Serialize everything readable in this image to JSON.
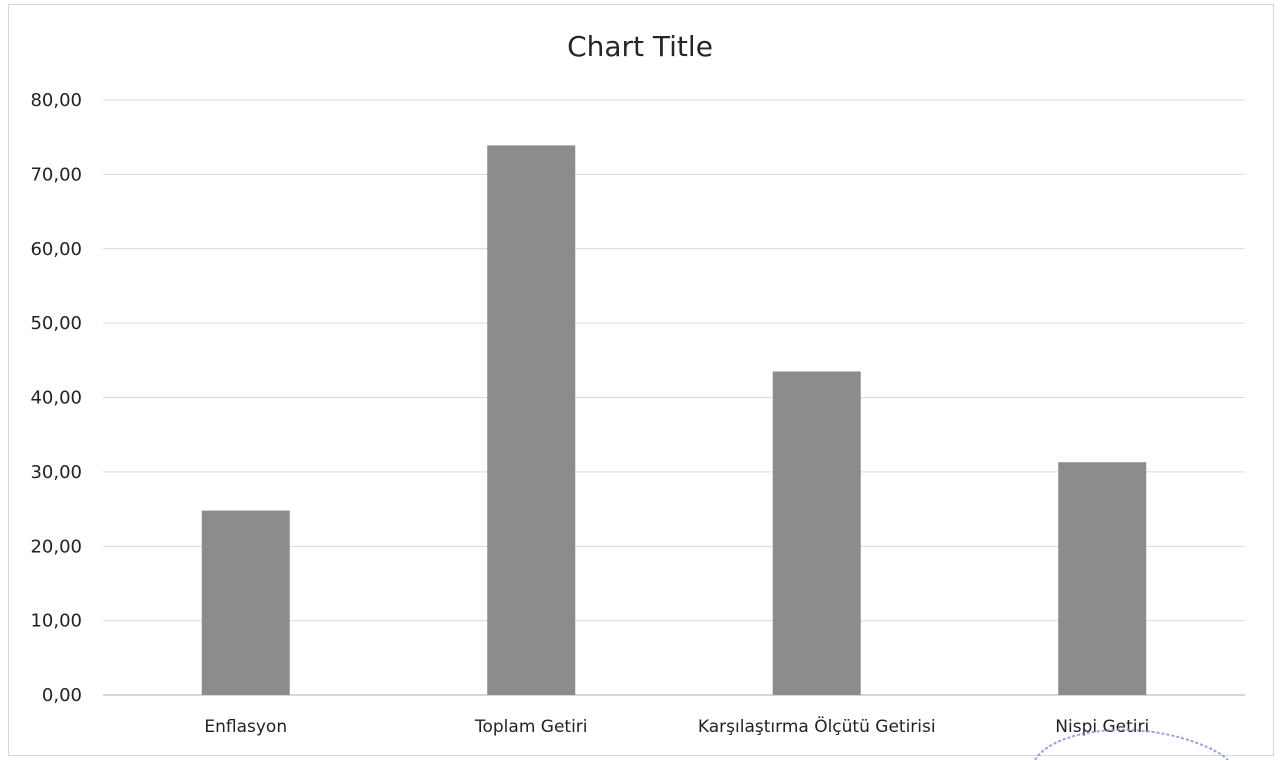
{
  "chart_data": {
    "type": "bar",
    "title": "Chart Title",
    "categories": [
      "Enflasyon",
      "Toplam Getiri",
      "Karşılaştırma Ölçütü Getirisi",
      "Nispi Getiri"
    ],
    "values": [
      24.8,
      73.9,
      43.5,
      31.3
    ],
    "ylim": [
      0,
      80
    ],
    "yticks": [
      "0,00",
      "10,00",
      "20,00",
      "30,00",
      "40,00",
      "50,00",
      "60,00",
      "70,00",
      "80,00"
    ],
    "xlabel": "",
    "ylabel": "",
    "grid": true,
    "colors": {
      "bar": "#8c8c8c",
      "grid": "#d9d9d9"
    }
  }
}
